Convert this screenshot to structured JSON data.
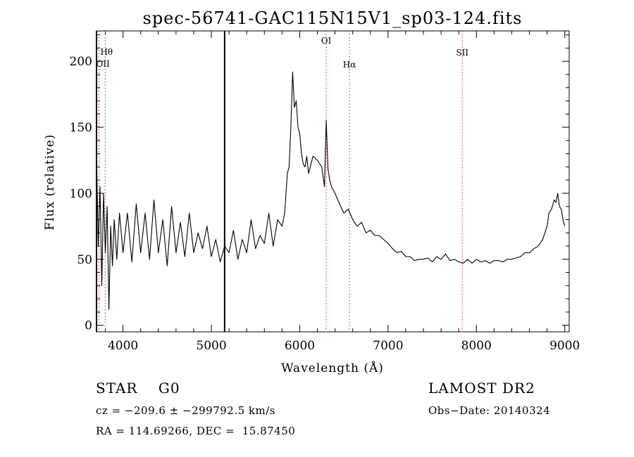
{
  "chart_data": {
    "type": "line",
    "title": "spec-56741-GAC115N15V1_sp03-124.fits",
    "xlabel": "Wavelength (Å)",
    "ylabel": "Flux (relative)",
    "xlim": [
      3700,
      9050
    ],
    "ylim": [
      -5,
      223
    ],
    "xticks": [
      "4000",
      "5000",
      "6000",
      "7000",
      "8000",
      "9000"
    ],
    "xtick_values": [
      4000,
      5000,
      6000,
      7000,
      8000,
      9000
    ],
    "yticks": [
      "0",
      "50",
      "100",
      "150",
      "200"
    ],
    "ytick_values": [
      0,
      50,
      100,
      150,
      200
    ],
    "grid": false,
    "series": [
      {
        "x": [
          3700,
          3720,
          3740,
          3760,
          3780,
          3800,
          3820,
          3840,
          3860,
          3880,
          3900,
          3930,
          3960,
          4000,
          4050,
          4100,
          4150,
          4200,
          4250,
          4300,
          4350,
          4400,
          4450,
          4500,
          4550,
          4600,
          4650,
          4700,
          4750,
          4800,
          4850,
          4900,
          4950,
          5000,
          5050,
          5100,
          5150,
          5200,
          5250,
          5300,
          5350,
          5400,
          5450,
          5500,
          5550,
          5600,
          5650,
          5700,
          5750,
          5800,
          5830,
          5860,
          5880,
          5900,
          5920,
          5940,
          5960,
          5980,
          6000,
          6020,
          6040,
          6060,
          6080,
          6100,
          6150,
          6200,
          6250,
          6280,
          6300,
          6320,
          6340,
          6360,
          6400,
          6450,
          6500,
          6550,
          6600,
          6650,
          6700,
          6750,
          6800,
          6850,
          6900,
          6950,
          7000,
          7050,
          7100,
          7150,
          7200,
          7250,
          7300,
          7350,
          7400,
          7450,
          7500,
          7550,
          7600,
          7650,
          7700,
          7750,
          7800,
          7850,
          7900,
          7950,
          8000,
          8050,
          8100,
          8150,
          8200,
          8250,
          8300,
          8350,
          8400,
          8450,
          8500,
          8550,
          8600,
          8650,
          8700,
          8750,
          8800,
          8820,
          8850,
          8880,
          8900,
          8920,
          8940,
          8960,
          8980,
          9000
        ],
        "y": [
          130,
          60,
          105,
          30,
          100,
          55,
          90,
          12,
          75,
          45,
          80,
          50,
          85,
          55,
          85,
          48,
          92,
          55,
          85,
          50,
          95,
          55,
          80,
          45,
          90,
          55,
          78,
          52,
          85,
          55,
          70,
          58,
          75,
          52,
          65,
          48,
          60,
          55,
          72,
          50,
          65,
          55,
          80,
          58,
          68,
          62,
          85,
          60,
          80,
          75,
          85,
          115,
          120,
          150,
          192,
          165,
          170,
          150,
          145,
          130,
          122,
          120,
          128,
          115,
          128,
          125,
          120,
          105,
          155,
          118,
          110,
          105,
          100,
          92,
          85,
          88,
          80,
          75,
          78,
          70,
          72,
          68,
          68,
          65,
          62,
          58,
          55,
          56,
          52,
          52,
          49,
          50,
          50,
          51,
          48,
          52,
          50,
          54,
          49,
          50,
          48,
          47,
          50,
          47,
          50,
          48,
          49,
          47,
          49,
          49,
          48,
          50,
          50,
          51,
          52,
          55,
          55,
          58,
          60,
          65,
          75,
          85,
          88,
          95,
          93,
          100,
          90,
          88,
          80,
          75
        ]
      }
    ],
    "vlines": [
      {
        "label": "Hθ",
        "x": 3798
      },
      {
        "label": "OII",
        "x": 3728
      },
      {
        "label": "OI",
        "x": 6300
      },
      {
        "label": "Hα",
        "x": 6563
      },
      {
        "label": "SII",
        "x": 7840
      }
    ],
    "solid_lines": [
      5150,
      3700
    ]
  },
  "footer": {
    "classification": "STAR    G0",
    "survey": "LAMOST DR2",
    "cz": "cz = −209.6 ± −299792.5 km/s",
    "obs_date": "Obs−Date: 20140324",
    "radec": "RA = 114.69266, DEC =  15.87450"
  },
  "colors": {
    "spectrum": "#000000",
    "line_markers": "#cc4444",
    "axes": "#000000",
    "background": "#ffffff"
  }
}
